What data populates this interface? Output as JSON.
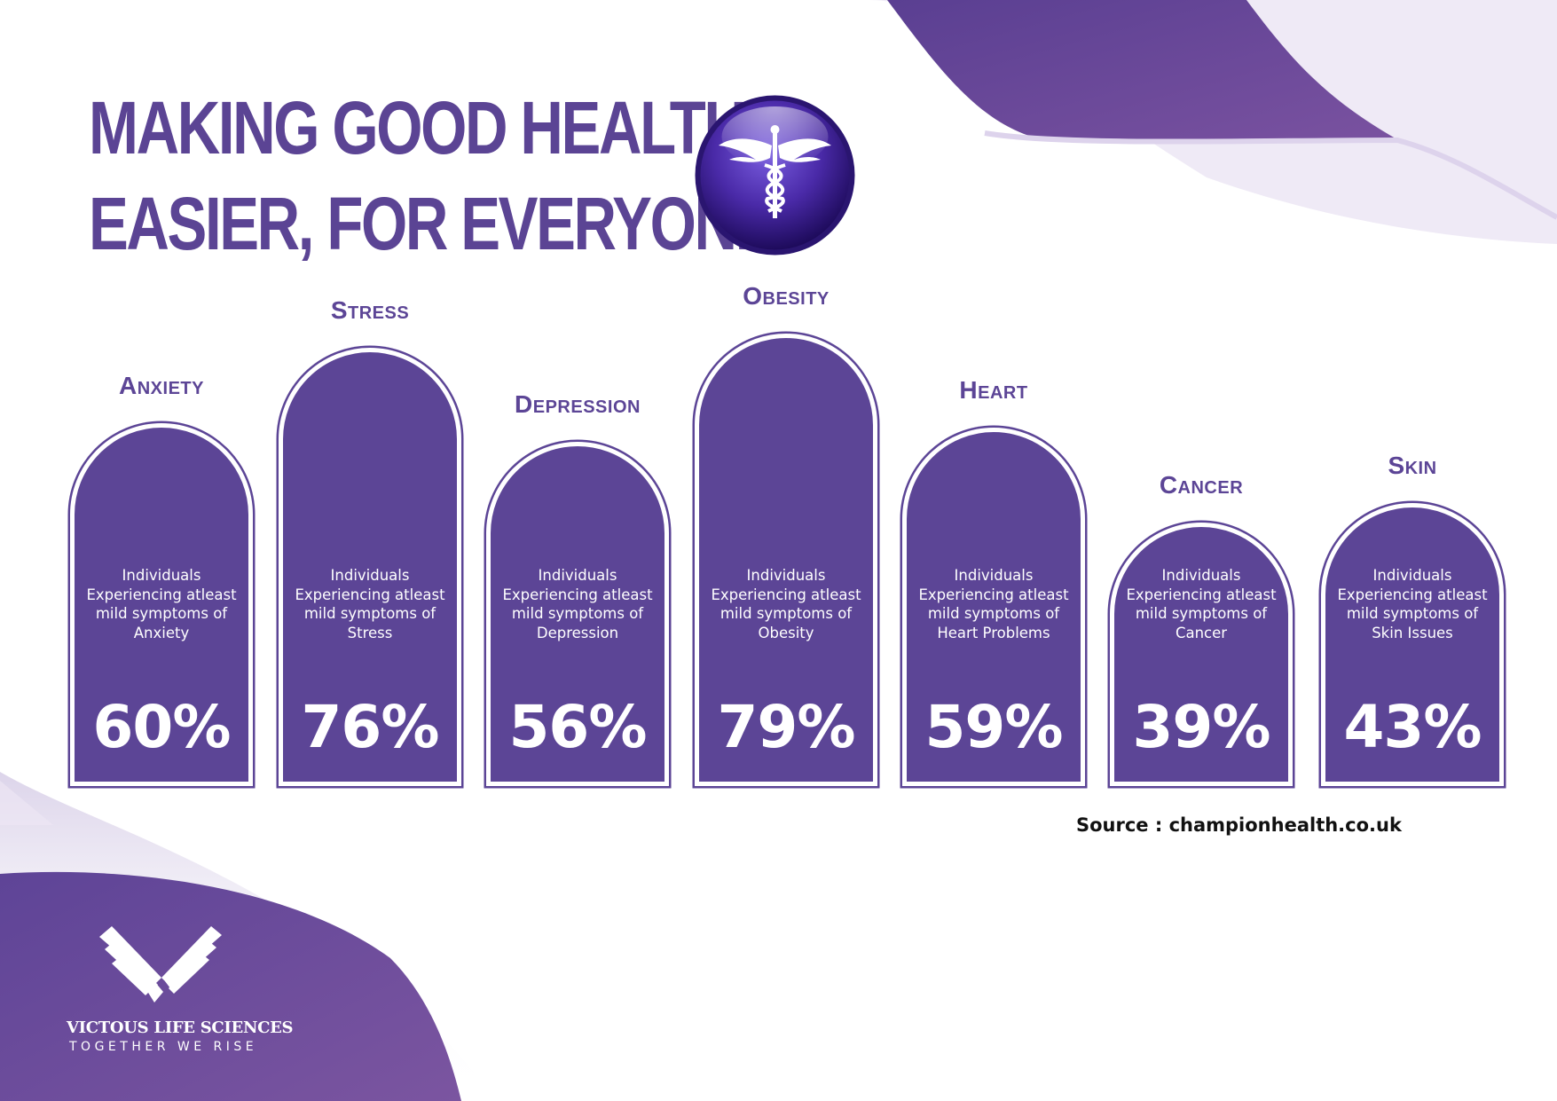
{
  "header": {
    "title_line1": "MAKING GOOD HEALTH",
    "title_line2": "EASIER, FOR EVERYONE",
    "emblem_icon": "caduceus-icon"
  },
  "colors": {
    "brand_purple": "#5c4596",
    "title_purple": "#5b4494",
    "white": "#ffffff"
  },
  "chart_data": {
    "type": "bar",
    "title": "",
    "categories": [
      "Anxiety",
      "Stress",
      "Depression",
      "Obesity",
      "Heart",
      "Cancer",
      "Skin"
    ],
    "descriptions": [
      "Individuals Experiencing atleast mild symptoms of Anxiety",
      "Individuals Experiencing atleast mild symptoms of Stress",
      "Individuals Experiencing atleast mild symptoms of Depression",
      "Individuals Experiencing atleast mild symptoms of Obesity",
      "Individuals Experiencing atleast mild symptoms of Heart Problems",
      "Individuals Experiencing atleast mild symptoms of Cancer",
      "Individuals Experiencing atleast mild symptoms of Skin Issues"
    ],
    "values": [
      60,
      76,
      56,
      79,
      59,
      39,
      43
    ],
    "value_labels": [
      "60%",
      "76%",
      "56%",
      "79%",
      "59%",
      "39%",
      "43%"
    ],
    "unit": "%",
    "xlabel": "",
    "ylabel": "",
    "grid": false,
    "legend": "none"
  },
  "source": "Source : championhealth.co.uk",
  "brand": {
    "logo_icon": "heart-hands-logo",
    "name": "VICTOUS LIFE SCIENCES",
    "tagline": "TOGETHER WE RISE"
  }
}
